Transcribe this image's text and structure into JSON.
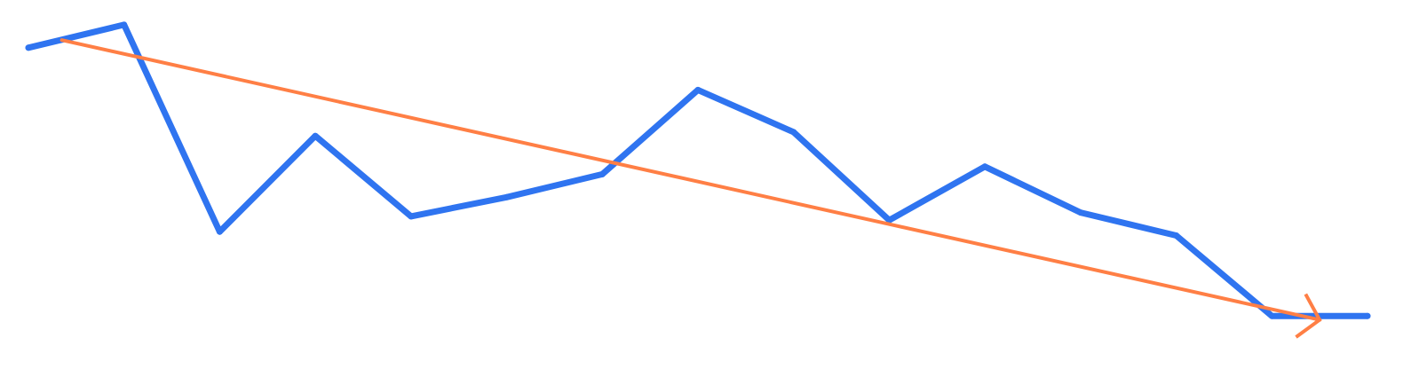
{
  "chart_data": {
    "type": "line",
    "title": "",
    "xlabel": "",
    "ylabel": "",
    "grid": false,
    "legend": "none",
    "axes_visible": false,
    "x": [
      0,
      1,
      2,
      3,
      4,
      5,
      6,
      7,
      8,
      9,
      10,
      11,
      12,
      13,
      14
    ],
    "xlim": [
      0,
      14
    ],
    "ylim": [
      0,
      100
    ],
    "series": [
      {
        "color": "#2f74f0",
        "values": [
          88,
          94,
          40,
          65,
          44,
          49,
          55,
          77,
          66,
          43,
          57,
          45,
          39,
          18,
          18
        ]
      }
    ],
    "trend_arrow": {
      "color": "#ff7f45",
      "from": {
        "x": 0.35,
        "y": 90
      },
      "to": {
        "x": 13.5,
        "y": 17
      }
    }
  }
}
